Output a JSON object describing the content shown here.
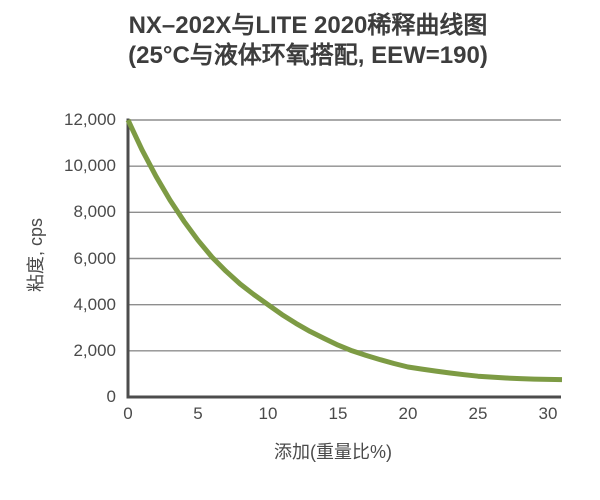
{
  "title": {
    "line1": "NX–202X与LITE 2020稀释曲线图",
    "line2": "(25°C与液体环氧搭配, EEW=190)"
  },
  "axes": {
    "y_title": "粘度, cps",
    "x_title": "添加(重量比%)",
    "y_ticks": [
      "0",
      "2,000",
      "4,000",
      "6,000",
      "8,000",
      "10,000",
      "12,000"
    ],
    "x_ticks": [
      "0",
      "5",
      "10",
      "15",
      "20",
      "25",
      "30"
    ]
  },
  "colors": {
    "curve": "#7d9b44",
    "axis": "#4d4d4d",
    "grid": "#8e8e8e",
    "title_text": "#3d3d3d",
    "label_text": "#4a4a4a",
    "background": "#ffffff"
  },
  "chart_data": {
    "type": "line",
    "title": "NX–202X与LITE 2020稀释曲线图 (25°C与液体环氧搭配, EEW=190)",
    "xlabel": "添加(重量比%)",
    "ylabel": "粘度, cps",
    "xlim": [
      0,
      31
    ],
    "ylim": [
      0,
      12000
    ],
    "grid": true,
    "legend": "none",
    "series": [
      {
        "name": "NX-202X / LITE 2020 dilution curve",
        "x": [
          0,
          1,
          2,
          3,
          4,
          5,
          6,
          7,
          8,
          9,
          10,
          11,
          12,
          13,
          14,
          15,
          16,
          17,
          18,
          19,
          20,
          21,
          22,
          23,
          24,
          25,
          26,
          27,
          28,
          29,
          30,
          31
        ],
        "y": [
          12000,
          10710,
          9560,
          8530,
          7610,
          6790,
          6060,
          5450,
          4900,
          4430,
          4000,
          3570,
          3190,
          2840,
          2540,
          2250,
          2000,
          1800,
          1620,
          1450,
          1300,
          1210,
          1120,
          1040,
          965,
          900,
          860,
          825,
          795,
          775,
          762,
          755
        ]
      }
    ]
  }
}
